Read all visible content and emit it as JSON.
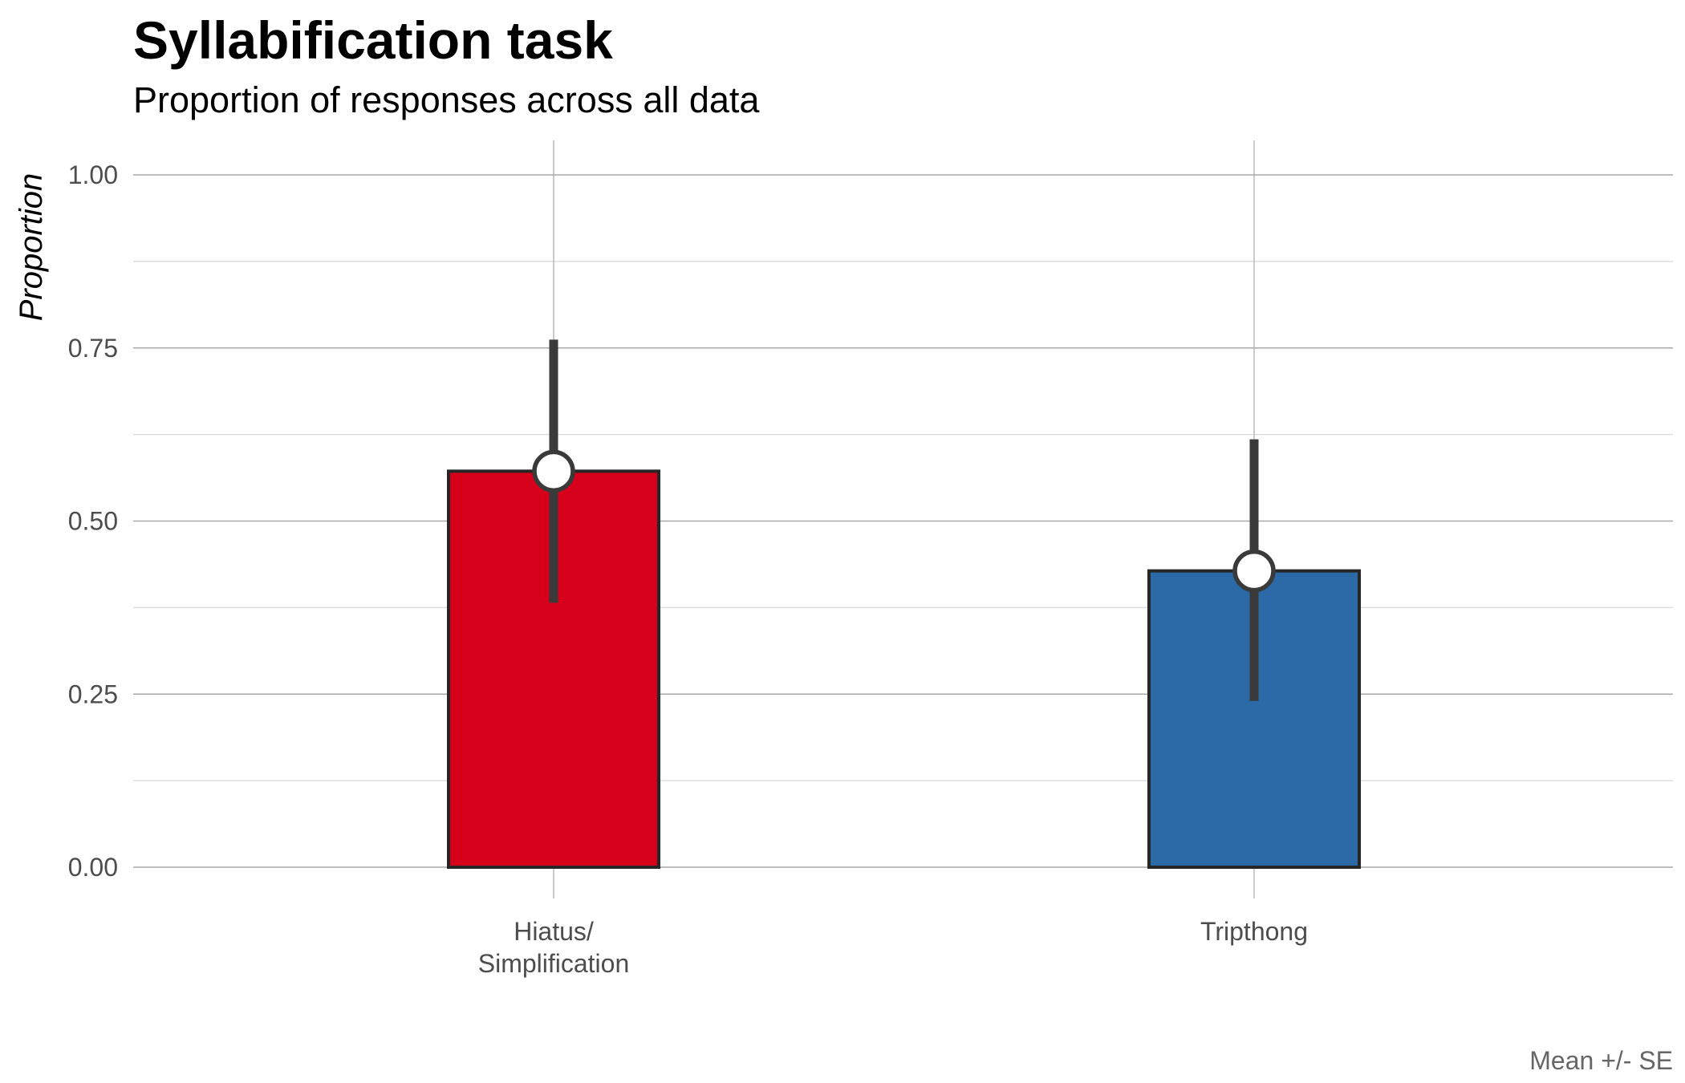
{
  "chart_data": {
    "type": "bar",
    "title": "Syllabification task",
    "subtitle": "Proportion of responses across all data",
    "xlabel": "",
    "ylabel": "Proportion",
    "caption": "Mean +/- SE",
    "categories": [
      [
        "Hiatus/",
        "Simplification"
      ],
      [
        "Tripthong"
      ]
    ],
    "values": [
      0.572,
      0.428
    ],
    "error_low": [
      0.382,
      0.24
    ],
    "error_high": [
      0.762,
      0.618
    ],
    "colors": [
      "#d7001a",
      "#2c69a7"
    ],
    "ylim": [
      0,
      1.05
    ],
    "yticks": [
      0,
      0.25,
      0.5,
      0.75,
      1.0
    ],
    "ytick_labels": [
      "0.00",
      "0.25",
      "0.50",
      "0.75",
      "1.00"
    ],
    "grid": true,
    "legend": "none"
  }
}
